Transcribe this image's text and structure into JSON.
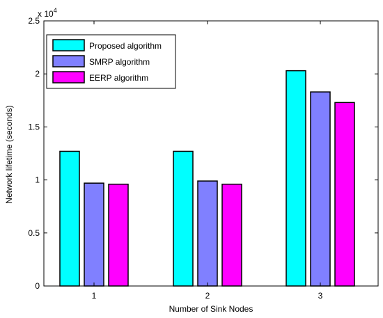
{
  "chart_data": {
    "type": "bar",
    "categories": [
      "1",
      "2",
      "3"
    ],
    "series": [
      {
        "name": "Proposed algorithm",
        "color": "#00FFFF",
        "values": [
          12700,
          12700,
          20300
        ]
      },
      {
        "name": "SMRP algorithm",
        "color": "#8080FF",
        "values": [
          9700,
          9900,
          18300
        ]
      },
      {
        "name": "EERP algorithm",
        "color": "#FF00FF",
        "values": [
          9600,
          9600,
          17300
        ]
      }
    ],
    "xlabel": "Number of Sink Nodes",
    "ylabel": "Network lifetime (seconds)",
    "ylim": [
      0,
      25000
    ],
    "y_ticks": [
      0,
      5000,
      10000,
      15000,
      20000,
      25000
    ],
    "y_tick_labels": [
      "0",
      "0.5",
      "1",
      "1.5",
      "2",
      "2.5"
    ],
    "y_exponent_base": "x 10",
    "y_exponent_power": "4",
    "grid": false,
    "legend_position": "top-left"
  }
}
